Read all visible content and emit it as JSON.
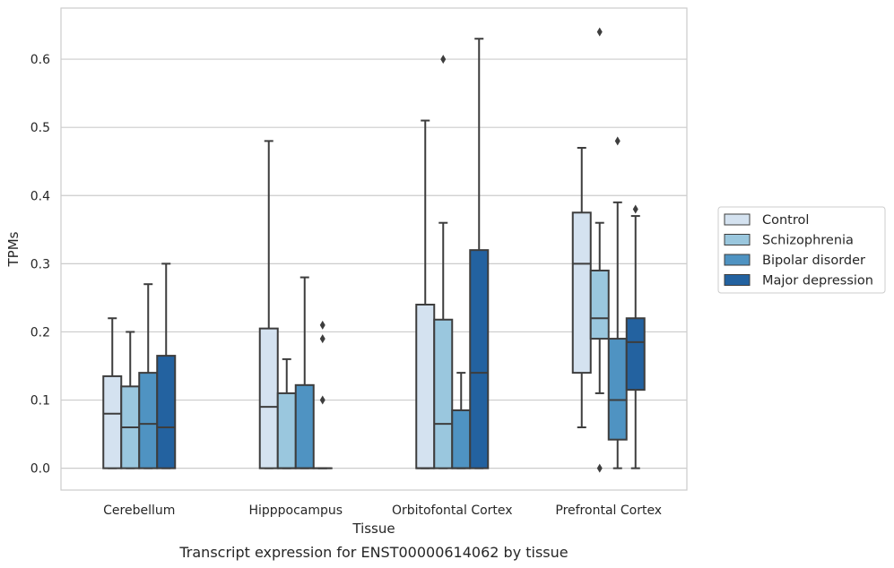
{
  "chart_data": {
    "type": "box",
    "xlabel": "Tissue",
    "ylabel": "TPMs",
    "caption": "Transcript expression for ENST00000614062 by tissue",
    "ylim": [
      -0.032,
      0.675
    ],
    "yticks": [
      "0.0",
      "0.1",
      "0.2",
      "0.3",
      "0.4",
      "0.5",
      "0.6"
    ],
    "grid": "horizontal",
    "legend_position": "outside-right",
    "categories": [
      "Cerebellum",
      "Hipppocampus",
      "Orbitofontal Cortex",
      "Prefrontal Cortex"
    ],
    "colors": [
      "#d4e2f0",
      "#9ac7de",
      "#4f93c2",
      "#2362a0"
    ],
    "series": [
      {
        "name": "Control",
        "boxes": [
          {
            "min": 0,
            "q1": 0,
            "median": 0.08,
            "q3": 0.135,
            "max": 0.22,
            "outliers": []
          },
          {
            "min": 0,
            "q1": 0,
            "median": 0.09,
            "q3": 0.205,
            "max": 0.48,
            "outliers": []
          },
          {
            "min": 0,
            "q1": 0,
            "median": 0,
            "q3": 0.24,
            "max": 0.51,
            "outliers": []
          },
          {
            "min": 0.06,
            "q1": 0.14,
            "median": 0.3,
            "q3": 0.375,
            "max": 0.47,
            "outliers": []
          }
        ]
      },
      {
        "name": "Schizophrenia",
        "boxes": [
          {
            "min": 0,
            "q1": 0,
            "median": 0.06,
            "q3": 0.12,
            "max": 0.2,
            "outliers": []
          },
          {
            "min": 0,
            "q1": 0,
            "median": 0,
            "q3": 0.11,
            "max": 0.16,
            "outliers": []
          },
          {
            "min": 0,
            "q1": 0,
            "median": 0.065,
            "q3": 0.218,
            "max": 0.36,
            "outliers": [
              0.6
            ]
          },
          {
            "min": 0.11,
            "q1": 0.19,
            "median": 0.22,
            "q3": 0.29,
            "max": 0.36,
            "outliers": [
              0.0,
              0.64
            ]
          }
        ]
      },
      {
        "name": "Bipolar disorder",
        "boxes": [
          {
            "min": 0,
            "q1": 0,
            "median": 0.065,
            "q3": 0.14,
            "max": 0.27,
            "outliers": []
          },
          {
            "min": 0,
            "q1": 0,
            "median": 0,
            "q3": 0.122,
            "max": 0.28,
            "outliers": []
          },
          {
            "min": 0,
            "q1": 0,
            "median": 0,
            "q3": 0.085,
            "max": 0.14,
            "outliers": []
          },
          {
            "min": 0,
            "q1": 0.042,
            "median": 0.1,
            "q3": 0.19,
            "max": 0.39,
            "outliers": [
              0.48
            ]
          }
        ]
      },
      {
        "name": "Major depression",
        "boxes": [
          {
            "min": 0,
            "q1": 0,
            "median": 0.06,
            "q3": 0.165,
            "max": 0.3,
            "outliers": []
          },
          {
            "min": 0,
            "q1": 0,
            "median": 0,
            "q3": 0,
            "max": 0,
            "outliers": [
              0.1,
              0.19,
              0.21
            ]
          },
          {
            "min": 0,
            "q1": 0,
            "median": 0.14,
            "q3": 0.32,
            "max": 0.63,
            "outliers": []
          },
          {
            "min": 0,
            "q1": 0.115,
            "median": 0.185,
            "q3": 0.22,
            "max": 0.37,
            "outliers": [
              0.38
            ]
          }
        ]
      }
    ]
  }
}
